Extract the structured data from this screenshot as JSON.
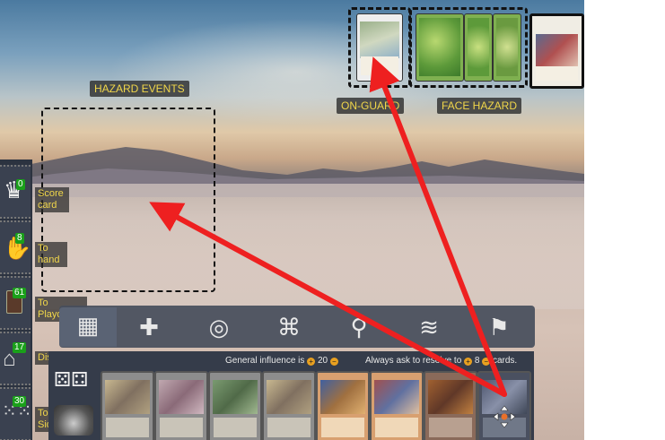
{
  "zones": {
    "hazard_events": "HAZARD EVENTS",
    "on_guard": "ON-GUARD",
    "face_hazard": "FACE HAZARD"
  },
  "sidebar": {
    "score": {
      "count": "0",
      "label": "Score card"
    },
    "hand": {
      "count": "8",
      "label": "To hand"
    },
    "playdeck": {
      "count": "61",
      "label": "To Playdeck"
    },
    "discard": {
      "count": "17",
      "label": "Discard"
    },
    "sideboard": {
      "count": "30",
      "label": "To Sideboard"
    }
  },
  "tabs": [
    {
      "name": "hand-tab",
      "icon": "cards-grid-icon",
      "glyph": "▦"
    },
    {
      "name": "medkit-tab",
      "icon": "medkit-icon",
      "glyph": "✚"
    },
    {
      "name": "target-tab",
      "icon": "target-icon",
      "glyph": "◎"
    },
    {
      "name": "map-tab",
      "icon": "map-icon",
      "glyph": "⌘"
    },
    {
      "name": "location-tab",
      "icon": "location-pin-icon",
      "glyph": "⚲"
    },
    {
      "name": "stack-tab",
      "icon": "stack-icon",
      "glyph": "≋"
    },
    {
      "name": "finish-tab",
      "icon": "checkered-flag-icon",
      "glyph": "⚑"
    }
  ],
  "hand_info": {
    "influence_label": "General influence is",
    "influence_value": "20",
    "resolve_label_1": "Always ask to resolve to",
    "resolve_value": "8",
    "resolve_label_2": "cards."
  },
  "colors": {
    "label_text": "#f0d64a",
    "badge_green": "#1aa01a",
    "arrow_red": "#ee2020"
  }
}
